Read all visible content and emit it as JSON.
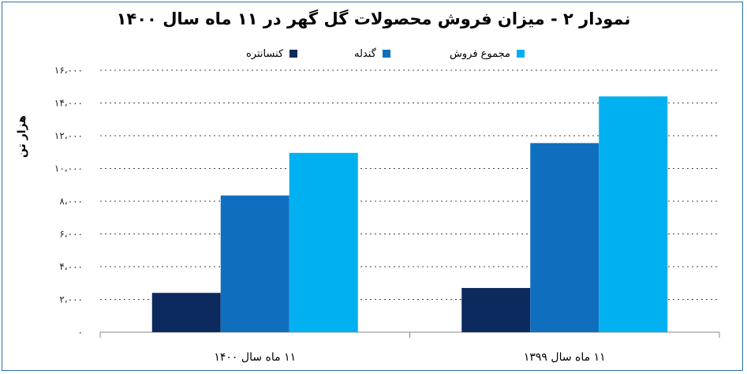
{
  "chart_data": {
    "type": "bar",
    "title": "نمودار ۲ - میزان فروش محصولات گل گهر در ۱۱ ماه سال ۱۴۰۰",
    "ylabel": "هزار تن",
    "xlabel": "",
    "categories": [
      "۱۱ ماه سال ۱۴۰۰",
      "۱۱ ماه سال ۱۳۹۹"
    ],
    "series": [
      {
        "name": "کنسانتره",
        "color": "#0c2a5e",
        "values": [
          2400,
          2700
        ]
      },
      {
        "name": "گندله",
        "color": "#0f6fbe",
        "values": [
          8350,
          11550
        ]
      },
      {
        "name": "مجموع فروش",
        "color": "#00b0f0",
        "values": [
          10950,
          14400
        ]
      }
    ],
    "ylim": [
      0,
      16000
    ],
    "yticks": [
      0,
      2000,
      4000,
      6000,
      8000,
      10000,
      12000,
      14000,
      16000
    ],
    "ytick_labels": [
      "۰",
      "۲،۰۰۰",
      "۴،۰۰۰",
      "۶،۰۰۰",
      "۸،۰۰۰",
      "۱۰،۰۰۰",
      "۱۲،۰۰۰",
      "۱۴،۰۰۰",
      "۱۶،۰۰۰"
    ],
    "grid": true,
    "legend_position": "top"
  }
}
